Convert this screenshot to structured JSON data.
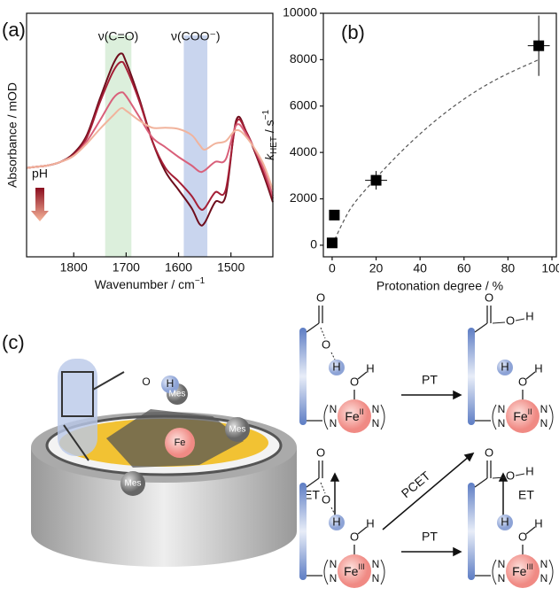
{
  "chart_data": [
    {
      "type": "line",
      "panel": "(a)",
      "x_label_parts": [
        "Wavenumber / cm",
        "−1"
      ],
      "y_label": "Absorbance / mOD",
      "xlim": [
        1890,
        1420
      ],
      "ylim": [
        -1,
        1
      ],
      "xticks": [
        1800,
        1700,
        1600,
        1500
      ],
      "bands": [
        {
          "range": [
            1740,
            1690
          ],
          "color": "#dcefdc",
          "label": "ν(C=O)"
        },
        {
          "range": [
            1590,
            1545
          ],
          "color": "#c9d5ee",
          "label": "ν(COO⁻)"
        }
      ],
      "arrow_label": "pH",
      "x": [
        1890,
        1870,
        1850,
        1825,
        1800,
        1775,
        1750,
        1725,
        1710,
        1700,
        1675,
        1650,
        1625,
        1600,
        1575,
        1560,
        1550,
        1530,
        1510,
        1490,
        1470,
        1440,
        1420
      ],
      "series": [
        {
          "color": "#6e0d1c",
          "values": [
            -0.27,
            -0.26,
            -0.25,
            -0.22,
            -0.15,
            0.0,
            0.3,
            0.58,
            0.67,
            0.6,
            0.3,
            -0.05,
            -0.3,
            -0.45,
            -0.6,
            -0.73,
            -0.72,
            -0.55,
            -0.5,
            0.12,
            0.02,
            -0.3,
            -0.55
          ]
        },
        {
          "color": "#a51f36",
          "values": [
            -0.27,
            -0.26,
            -0.25,
            -0.22,
            -0.16,
            -0.02,
            0.27,
            0.52,
            0.6,
            0.55,
            0.28,
            -0.05,
            -0.27,
            -0.38,
            -0.5,
            -0.6,
            -0.6,
            -0.47,
            -0.45,
            0.1,
            0.02,
            -0.28,
            -0.52
          ]
        },
        {
          "color": "#d9607a",
          "values": [
            -0.27,
            -0.26,
            -0.25,
            -0.22,
            -0.17,
            -0.05,
            0.12,
            0.3,
            0.35,
            0.32,
            0.15,
            -0.02,
            -0.1,
            -0.18,
            -0.25,
            -0.3,
            -0.29,
            -0.22,
            -0.2,
            0.08,
            0.0,
            -0.25,
            -0.5
          ]
        },
        {
          "color": "#f1b39c",
          "values": [
            -0.27,
            -0.26,
            -0.25,
            -0.22,
            -0.17,
            -0.07,
            0.05,
            0.16,
            0.22,
            0.2,
            0.12,
            0.06,
            0.06,
            0.05,
            0.0,
            -0.08,
            -0.12,
            -0.07,
            -0.05,
            0.04,
            -0.02,
            -0.22,
            -0.45
          ]
        }
      ]
    },
    {
      "type": "scatter",
      "panel": "(b)",
      "x_label": "Protonation degree / %",
      "y_label_parts": [
        "k",
        "HET",
        " / s",
        "−1"
      ],
      "xlim": [
        -4,
        102
      ],
      "ylim": [
        -500,
        10000
      ],
      "xticks": [
        0,
        20,
        40,
        60,
        80,
        100
      ],
      "yticks": [
        0,
        2000,
        4000,
        6000,
        8000,
        10000
      ],
      "x": [
        0,
        1,
        20,
        94
      ],
      "values": [
        100,
        1300,
        2800,
        8600
      ],
      "xerr": [
        null,
        null,
        5,
        5
      ],
      "yerr": [
        null,
        null,
        400,
        1300
      ],
      "color": "#000000",
      "fit": {
        "x": [
          0,
          5,
          10,
          20,
          30,
          40,
          50,
          60,
          70,
          80,
          94
        ],
        "values": [
          0,
          1000,
          1800,
          2900,
          3900,
          4800,
          5600,
          6300,
          6900,
          7400,
          8000
        ],
        "color": "#555555"
      }
    }
  ],
  "scheme": {
    "label": "(c)",
    "mes": "Mes",
    "fe": "Fe",
    "o": "O",
    "h": "H",
    "n": "N",
    "arrows": {
      "pt": "PT",
      "et": "ET",
      "pcet": "PCET"
    },
    "states": [
      {
        "ox": "II"
      },
      {
        "ox": "II"
      },
      {
        "ox": "III"
      },
      {
        "ox": "III"
      }
    ]
  }
}
